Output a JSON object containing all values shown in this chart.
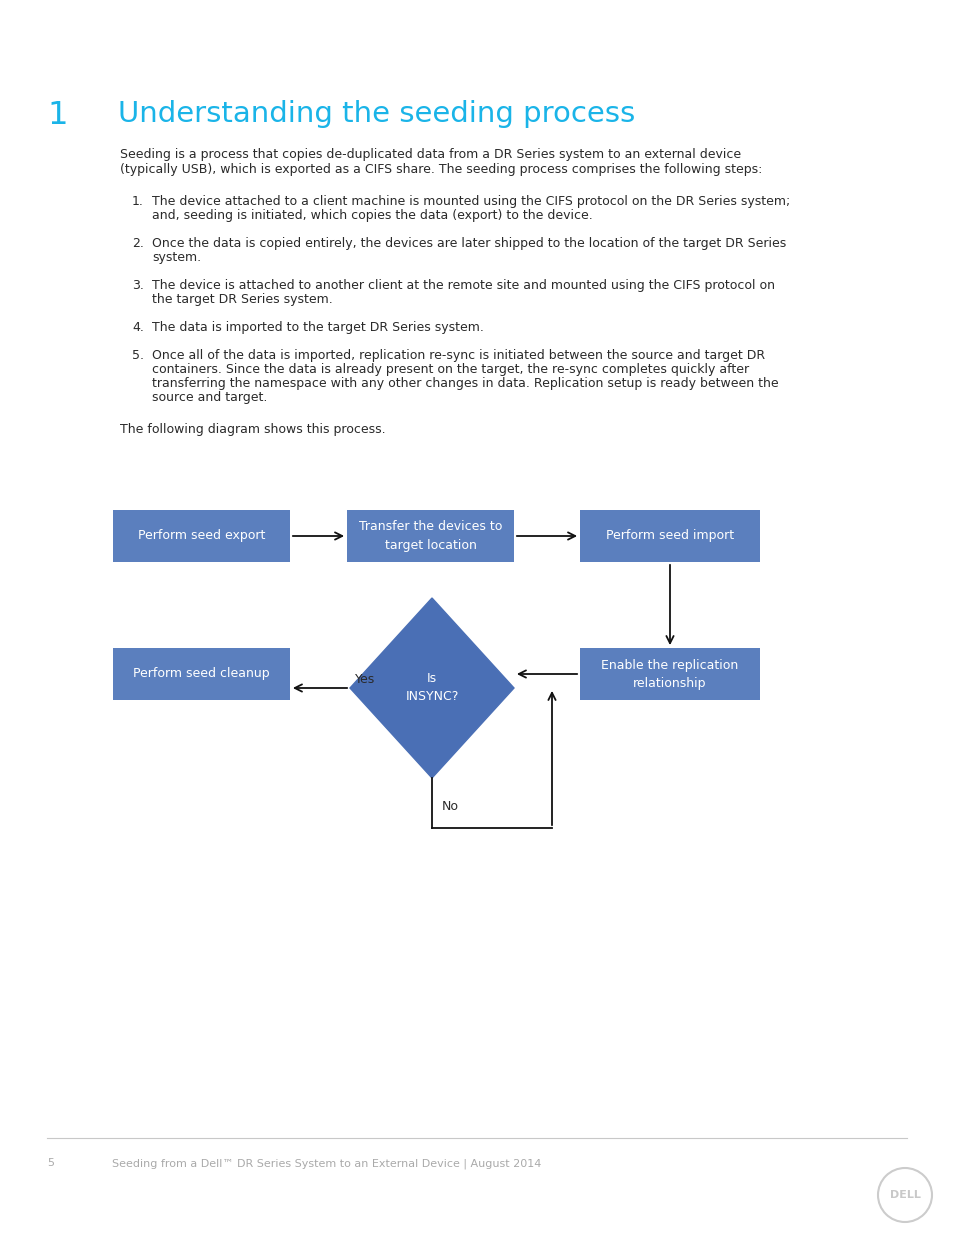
{
  "bg_color": "#ffffff",
  "page_number": "5",
  "footer_text": "Seeding from a Dell™ DR Series System to an External Device | August 2014",
  "section_number": "1",
  "section_title": "Understanding the seeding process",
  "section_number_color": "#1ab4e8",
  "section_title_color": "#1ab4e8",
  "intro_line1": "Seeding is a process that copies de-duplicated data from a DR Series system to an external device",
  "intro_line2": "(typically USB), which is exported as a CIFS share. The seeding process comprises the following steps:",
  "steps": [
    [
      "1.",
      "The device attached to a client machine is mounted using the CIFS protocol on the DR Series system;"
    ],
    [
      "",
      "and, seeding is initiated, which copies the data (export) to the device."
    ],
    [
      "2.",
      "Once the data is copied entirely, the devices are later shipped to the location of the target DR Series"
    ],
    [
      "",
      "system."
    ],
    [
      "3.",
      "The device is attached to another client at the remote site and mounted using the CIFS protocol on"
    ],
    [
      "",
      "the target DR Series system."
    ],
    [
      "4.",
      "The data is imported to the target DR Series system."
    ],
    [
      "5.",
      "Once all of the data is imported, replication re-sync is initiated between the source and target DR"
    ],
    [
      "",
      "containers. Since the data is already present on the target, the re-sync completes quickly after"
    ],
    [
      "",
      "transferring the namespace with any other changes in data. Replication setup is ready between the"
    ],
    [
      "",
      "source and target."
    ]
  ],
  "diagram_intro": "The following diagram shows this process.",
  "box_color": "#5b7fbe",
  "box_text_color": "#ffffff",
  "diamond_color": "#4a6fb5",
  "arrow_color": "#111111",
  "separator_color": "#c8c8c8",
  "footer_color": "#aaaaaa",
  "text_color": "#2a2a2a",
  "box1_label": "Perform seed export",
  "box2_label": "Transfer the devices to\ntarget location",
  "box3_label": "Perform seed import",
  "box4_label": "Perform seed cleanup",
  "box5_label": "Enable the replication\nrelationship",
  "diamond_label": "Is\nINSYNC?",
  "yes_label": "Yes",
  "no_label": "No"
}
